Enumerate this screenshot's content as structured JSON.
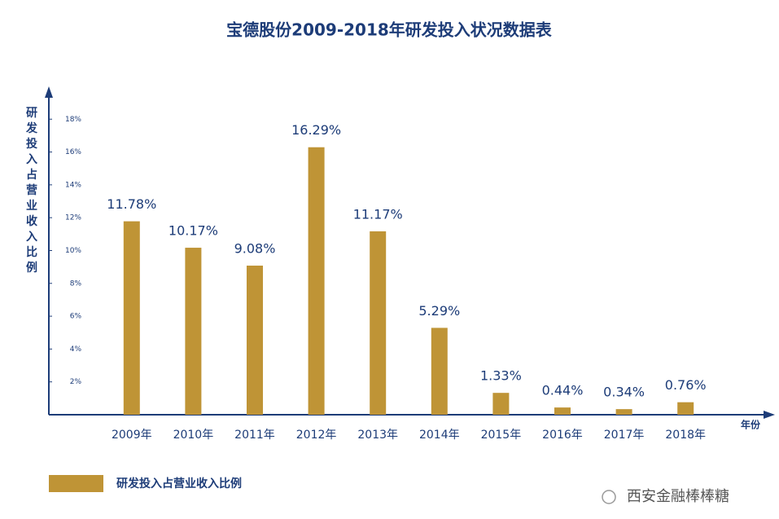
{
  "chart_data": {
    "type": "bar",
    "title": "宝德股份2009-2018年研发投入状况数据表",
    "y_label": "研发投入占营业收入比例",
    "x_label": "年份",
    "categories": [
      "2009年",
      "2010年",
      "2011年",
      "2012年",
      "2013年",
      "2014年",
      "2015年",
      "2016年",
      "2017年",
      "2018年"
    ],
    "series": [
      {
        "name": "研发投入占营业收入比例",
        "color": "#bf9436",
        "values": [
          11.78,
          10.17,
          9.08,
          16.29,
          11.17,
          5.29,
          1.33,
          0.44,
          0.34,
          0.76
        ],
        "value_labels": [
          "11.78%",
          "10.17%",
          "9.08%",
          "16.29%",
          "11.17%",
          "5.29%",
          "1.33%",
          "0.44%",
          "0.34%",
          "0.76%"
        ]
      }
    ],
    "ylim": [
      0,
      19.7
    ],
    "yticks": [
      {
        "value": 2,
        "label": "2%"
      },
      {
        "value": 4,
        "label": "4%"
      },
      {
        "value": 6,
        "label": "6%"
      },
      {
        "value": 8,
        "label": "8%"
      },
      {
        "value": 10,
        "label": "10%"
      },
      {
        "value": 12,
        "label": "12%"
      },
      {
        "value": 14,
        "label": "14%"
      },
      {
        "value": 16,
        "label": "16%"
      },
      {
        "value": 18,
        "label": "18%"
      }
    ],
    "grid": false,
    "watermark": "西安金融棒棒糖"
  }
}
